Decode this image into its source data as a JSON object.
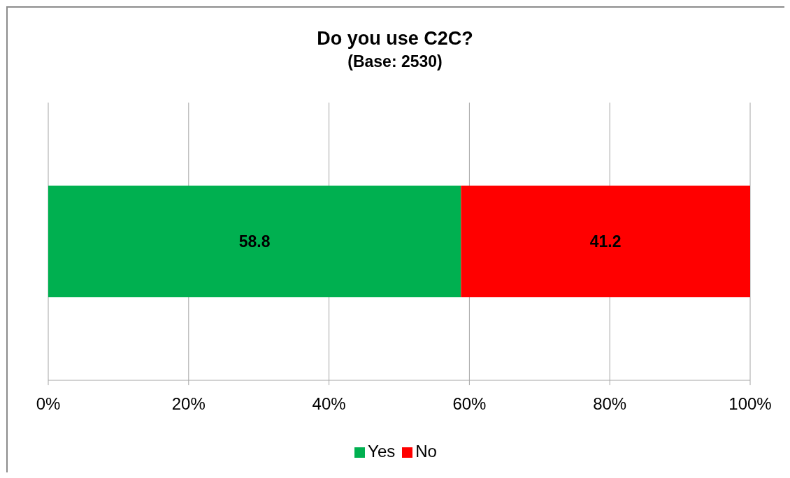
{
  "chart_data": {
    "type": "bar",
    "orientation": "horizontal",
    "stacked": true,
    "title": "Do you use C2C?",
    "subtitle": "(Base: 2530)",
    "categories": [
      null
    ],
    "series": [
      {
        "name": "Yes",
        "color": "#00b050",
        "values": [
          58.8
        ]
      },
      {
        "name": "No",
        "color": "#ff0000",
        "values": [
          41.2
        ]
      }
    ],
    "xlim": [
      0,
      100
    ],
    "xticks": [
      {
        "value": 0,
        "label": "0%"
      },
      {
        "value": 20,
        "label": "20%"
      },
      {
        "value": 40,
        "label": "40%"
      },
      {
        "value": 60,
        "label": "60%"
      },
      {
        "value": 80,
        "label": "80%"
      },
      {
        "value": 100,
        "label": "100%"
      }
    ],
    "grid": "x",
    "legend": "bottom",
    "data_labels": true
  }
}
